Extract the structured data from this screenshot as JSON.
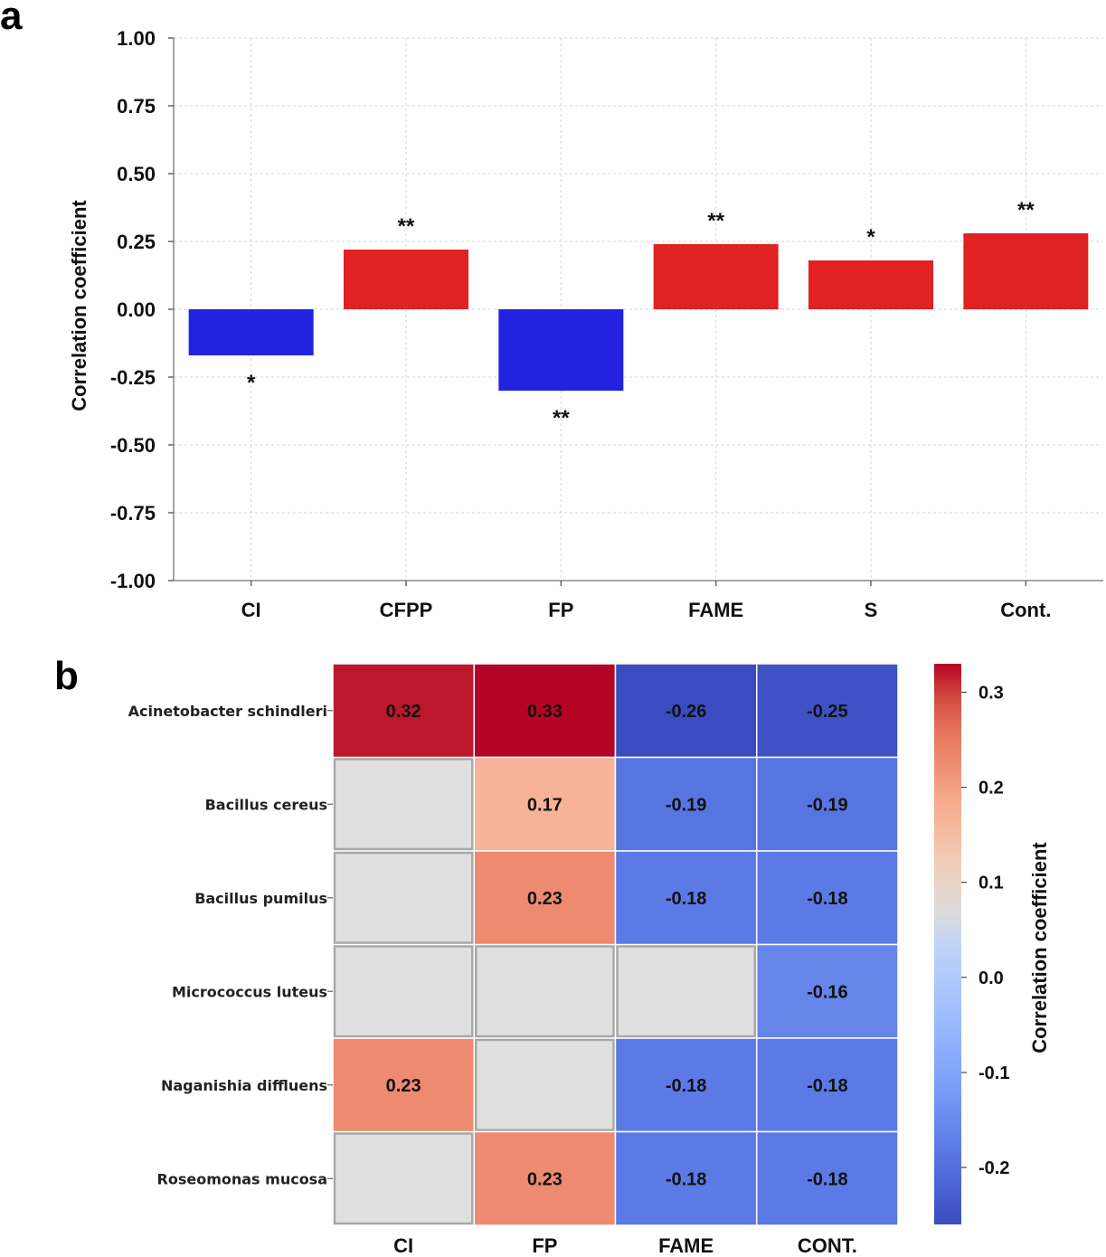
{
  "chart_data": [
    {
      "panel": "a",
      "type": "bar",
      "categories": [
        "CI",
        "CFPP",
        "FP",
        "FAME",
        "S",
        "Cont."
      ],
      "values": [
        -0.17,
        0.22,
        -0.3,
        0.24,
        0.18,
        0.28
      ],
      "significance": [
        "*",
        "**",
        "**",
        "**",
        "*",
        "**"
      ],
      "ylabel": "Correlation coefficient",
      "xlabel": "",
      "ylim": [
        -1.0,
        1.0
      ],
      "yticks": [
        "1.00",
        "0.75",
        "0.50",
        "0.25",
        "0.00",
        "-0.25",
        "-0.50",
        "-0.75",
        "-1.00"
      ],
      "ytick_values": [
        1.0,
        0.75,
        0.5,
        0.25,
        0.0,
        -0.25,
        -0.5,
        -0.75,
        -1.0
      ],
      "grid": true,
      "colors": {
        "positive": "#e02222",
        "negative": "#2222e0"
      }
    },
    {
      "panel": "b",
      "type": "heatmap",
      "rows": [
        "Acinetobacter schindleri",
        "Bacillus cereus",
        "Bacillus pumilus",
        "Micrococcus luteus",
        "Naganishia diffluens",
        "Roseomonas mucosa"
      ],
      "columns": [
        "CI",
        "FP",
        "FAME",
        "CONT."
      ],
      "values": [
        [
          0.32,
          0.33,
          -0.26,
          -0.25
        ],
        [
          null,
          0.17,
          -0.19,
          -0.19
        ],
        [
          null,
          0.23,
          -0.18,
          -0.18
        ],
        [
          null,
          null,
          null,
          -0.16
        ],
        [
          0.23,
          null,
          -0.18,
          -0.18
        ],
        [
          null,
          0.23,
          -0.18,
          -0.18
        ]
      ],
      "labels": [
        [
          "0.32",
          "0.33",
          "-0.26",
          "-0.25"
        ],
        [
          "",
          "0.17",
          "-0.19",
          "-0.19"
        ],
        [
          "",
          "0.23",
          "-0.18",
          "-0.18"
        ],
        [
          "",
          "",
          "",
          "-0.16"
        ],
        [
          "0.23",
          "",
          "-0.18",
          "-0.18"
        ],
        [
          "",
          "0.23",
          "-0.18",
          "-0.18"
        ]
      ],
      "colorbar": {
        "label": "Correlation coefficient",
        "range": [
          -0.26,
          0.33
        ],
        "ticks": [
          "0.3",
          "0.2",
          "0.1",
          "0.0",
          "-0.1",
          "-0.2"
        ],
        "tick_values": [
          0.3,
          0.2,
          0.1,
          0.0,
          -0.1,
          -0.2
        ],
        "colormap": "coolwarm"
      },
      "empty_color": "#e0e0e0"
    }
  ],
  "panel_labels": [
    "a",
    "b"
  ]
}
